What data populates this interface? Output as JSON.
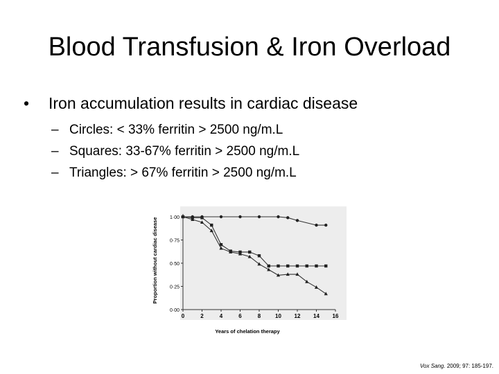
{
  "slide": {
    "title": "Blood Transfusion & Iron Overload",
    "bullet": "Iron accumulation results in cardiac disease",
    "bullet_symbol": "•",
    "sub_symbol": "–",
    "sub_bullets": [
      "Circles: < 33% ferritin > 2500 ng/m.L",
      "Squares: 33-67% ferritin > 2500 ng/m.L",
      "Triangles: > 67%  ferritin > 2500 ng/m.L"
    ],
    "citation": {
      "journal": "Vox Sang.",
      "details": " 2009; 97: 185-197."
    }
  },
  "chart_data": {
    "type": "line",
    "title": "",
    "xlabel": "Years of chelation therapy",
    "ylabel": "Proportion without cardiac disease",
    "xlim": [
      0,
      16
    ],
    "ylim": [
      0,
      1
    ],
    "x_ticks": [
      "0",
      "2",
      "4",
      "6",
      "8",
      "10",
      "12",
      "14",
      "16"
    ],
    "y_ticks": [
      "0·00",
      "0·25",
      "0·50",
      "0·75",
      "1·00"
    ],
    "series": [
      {
        "name": "Circles",
        "marker": "circle",
        "x": [
          0,
          1,
          2,
          4,
          6,
          8,
          10,
          11,
          12,
          14,
          15
        ],
        "y": [
          1.0,
          1.0,
          1.0,
          1.0,
          1.0,
          1.0,
          1.0,
          0.99,
          0.96,
          0.91,
          0.91
        ]
      },
      {
        "name": "Squares",
        "marker": "square",
        "x": [
          0,
          1,
          2,
          3,
          4,
          5,
          6,
          7,
          8,
          9,
          10,
          11,
          12,
          13,
          14,
          15
        ],
        "y": [
          1.0,
          0.99,
          0.99,
          0.91,
          0.7,
          0.63,
          0.62,
          0.62,
          0.58,
          0.47,
          0.47,
          0.47,
          0.47,
          0.47,
          0.47,
          0.47
        ]
      },
      {
        "name": "Triangles",
        "marker": "triangle",
        "x": [
          0,
          1,
          2,
          3,
          4,
          5,
          6,
          7,
          8,
          9,
          10,
          11,
          12,
          13,
          14,
          15
        ],
        "y": [
          1.0,
          0.97,
          0.94,
          0.85,
          0.66,
          0.62,
          0.6,
          0.57,
          0.49,
          0.43,
          0.37,
          0.38,
          0.38,
          0.3,
          0.24,
          0.17
        ]
      }
    ]
  }
}
